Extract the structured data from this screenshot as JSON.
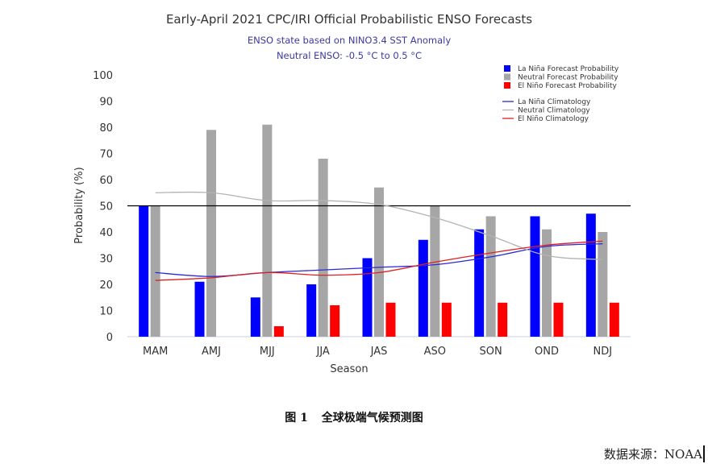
{
  "chart_data": {
    "type": "bar",
    "title": "Early-April 2021 CPC/IRI Official Probabilistic ENSO Forecasts",
    "subtitle": [
      "ENSO state based on NINO3.4 SST Anomaly",
      "Neutral ENSO: -0.5 °C to 0.5 °C"
    ],
    "xlabel": "Season",
    "ylabel": "Probability (%)",
    "ylim": [
      0,
      100
    ],
    "yticks": [
      0,
      10,
      20,
      30,
      40,
      50,
      60,
      70,
      80,
      90,
      100
    ],
    "reference_line": 50,
    "categories": [
      "MAM",
      "AMJ",
      "MJJ",
      "JJA",
      "JAS",
      "ASO",
      "SON",
      "OND",
      "NDJ"
    ],
    "series": [
      {
        "name": "La Niña Forecast Probability",
        "kind": "bar",
        "color": "#0000ff",
        "values": [
          50,
          21,
          15,
          20,
          30,
          37,
          41,
          46,
          47
        ]
      },
      {
        "name": "Neutral Forecast Probability",
        "kind": "bar",
        "color": "#a6a6a6",
        "values": [
          50,
          79,
          81,
          68,
          57,
          50,
          46,
          41,
          40
        ]
      },
      {
        "name": "El Niño Forecast Probability",
        "kind": "bar",
        "color": "#ff0000",
        "values": [
          0,
          0,
          4,
          12,
          13,
          13,
          13,
          13,
          13
        ]
      },
      {
        "name": "La Niña Climatology",
        "kind": "line",
        "color": "#2a2ad4",
        "values": [
          24.5,
          23,
          24.5,
          25.5,
          26.5,
          27.5,
          30.5,
          34.5,
          35.5
        ]
      },
      {
        "name": "Neutral Climatology",
        "kind": "line",
        "color": "#b3b3b3",
        "values": [
          55,
          55,
          52,
          52,
          50.5,
          45.5,
          38.5,
          31,
          29.5
        ]
      },
      {
        "name": "El Niño Climatology",
        "kind": "line",
        "color": "#e02020",
        "values": [
          21.5,
          22.5,
          24.5,
          23.5,
          24.5,
          28.5,
          32,
          35,
          36.5
        ]
      }
    ],
    "legend": "top-right"
  },
  "caption": {
    "figure_number": "图 1",
    "text": "全球极端气候预测图"
  },
  "source": "数据来源：NOAA"
}
